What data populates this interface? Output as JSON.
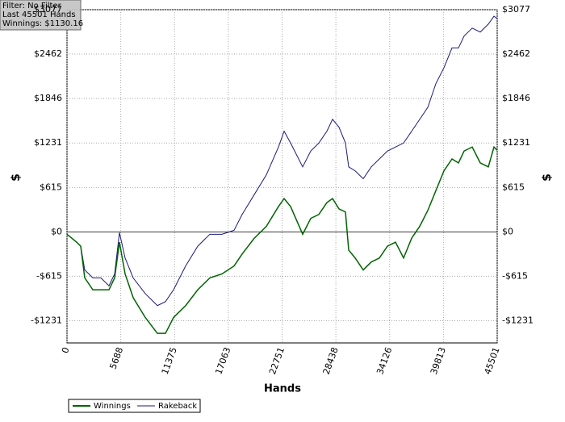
{
  "chart_data": {
    "type": "line",
    "info": [
      "Filter: No Filter",
      "Last  45501 Hands",
      "Winnings: $1130.16"
    ],
    "xlabel": "Hands",
    "ylabel": "$",
    "x": [
      0,
      1024,
      1451,
      1878,
      2732,
      3586,
      4439,
      5037,
      5549,
      6147,
      7000,
      8281,
      9561,
      10415,
      11269,
      12549,
      13830,
      15110,
      16391,
      17672,
      18525,
      19806,
      21086,
      22367,
      22965,
      23647,
      24928,
      25782,
      26635,
      27489,
      28087,
      28770,
      29453,
      29794,
      30477,
      31331,
      32184,
      33038,
      33892,
      34745,
      35599,
      36453,
      37306,
      38160,
      39014,
      39868,
      40721,
      41404,
      42002,
      42856,
      43709,
      44563,
      45161,
      45501
    ],
    "series": [
      {
        "name": "Winnings",
        "color": "#006400",
        "values": [
          -33,
          -143,
          -198,
          -637,
          -802,
          -802,
          -802,
          -637,
          -143,
          -582,
          -911,
          -1186,
          -1406,
          -1406,
          -1186,
          -1021,
          -802,
          -637,
          -582,
          -472,
          -307,
          -88,
          77,
          351,
          461,
          351,
          -33,
          187,
          241,
          406,
          461,
          318,
          275,
          -253,
          -362,
          -527,
          -417,
          -362,
          -198,
          -143,
          -362,
          -88,
          77,
          296,
          571,
          845,
          1010,
          955,
          1120,
          1175,
          955,
          900,
          1175,
          1130
        ]
      },
      {
        "name": "Rakeback",
        "color": "#1a1a7a",
        "values": [
          -33,
          -143,
          -198,
          -527,
          -637,
          -637,
          -747,
          -582,
          -11,
          -362,
          -637,
          -856,
          -1021,
          -966,
          -802,
          -472,
          -198,
          -33,
          -33,
          22,
          241,
          516,
          790,
          1175,
          1394,
          1230,
          900,
          1120,
          1230,
          1394,
          1559,
          1449,
          1230,
          900,
          845,
          736,
          900,
          1010,
          1120,
          1175,
          1230,
          1394,
          1559,
          1724,
          2053,
          2273,
          2547,
          2547,
          2712,
          2822,
          2767,
          2877,
          2987,
          2954
        ]
      }
    ],
    "xlim": [
      0,
      45501
    ],
    "ylim": [
      -1538,
      3077
    ],
    "xticks": [
      0,
      5688,
      11375,
      17063,
      22751,
      28438,
      34126,
      39813,
      45501
    ],
    "yticks": [
      {
        "value": -1231,
        "label": "-$1231"
      },
      {
        "value": -615,
        "label": "-$615"
      },
      {
        "value": 0,
        "label": "$0"
      },
      {
        "value": 615,
        "label": "$615"
      },
      {
        "value": 1231,
        "label": "$1231"
      },
      {
        "value": 1846,
        "label": "$1846"
      },
      {
        "value": 2462,
        "label": "$2462"
      },
      {
        "value": 3077,
        "label": "$3077"
      }
    ],
    "grid": true
  }
}
